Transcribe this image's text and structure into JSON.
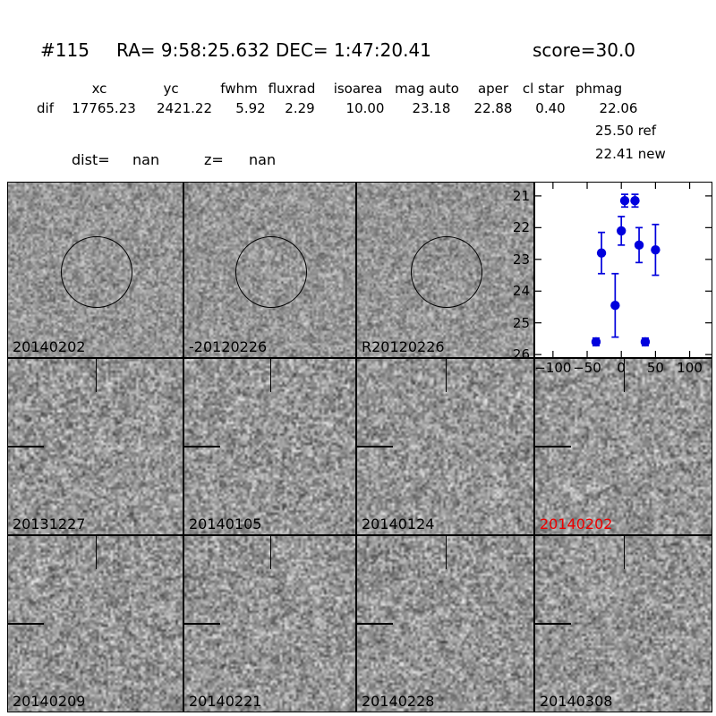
{
  "header": {
    "candidate_id": "#115",
    "coords": "RA= 9:58:25.632 DEC= 1:47:20.41",
    "score": "score=30.0"
  },
  "params": {
    "columns": [
      "xc",
      "yc",
      "fwhm",
      "fluxrad",
      "isoarea",
      "mag auto",
      "aper",
      "cl star",
      "phmag"
    ],
    "row_label": "dif",
    "values": [
      "17765.23",
      "2421.22",
      "5.92",
      "2.29",
      "10.00",
      "23.18",
      "22.88",
      "0.40",
      "22.06"
    ],
    "phmag_ref": "25.50 ref",
    "phmag_new": "22.41 new"
  },
  "dist_line": {
    "dist_label": "dist=",
    "dist_value": "nan",
    "z_label": "z=",
    "z_value": "nan"
  },
  "panels": [
    {
      "label": "20140202",
      "marker": "circle",
      "red": false
    },
    {
      "label": "-20120226",
      "marker": "circle",
      "red": false
    },
    {
      "label": "R20120226",
      "marker": "circle",
      "red": false
    },
    {
      "label": "20131227",
      "marker": "cross",
      "red": false
    },
    {
      "label": "20140105",
      "marker": "cross",
      "red": false
    },
    {
      "label": "20140124",
      "marker": "cross",
      "red": false
    },
    {
      "label": "20140202",
      "marker": "cross",
      "red": true
    },
    {
      "label": "20140209",
      "marker": "cross",
      "red": false
    },
    {
      "label": "20140221",
      "marker": "cross",
      "red": false
    },
    {
      "label": "20140228",
      "marker": "cross",
      "red": false
    },
    {
      "label": "20140308",
      "marker": "cross",
      "red": false
    }
  ],
  "chart_data": {
    "type": "scatter",
    "title": "",
    "xlabel": "",
    "ylabel": "",
    "y_inverted": true,
    "x": [
      -37,
      -29,
      -9,
      0,
      5,
      20,
      26,
      35,
      50
    ],
    "y": [
      25.6,
      22.8,
      24.45,
      22.1,
      21.15,
      21.15,
      22.55,
      25.6,
      22.7
    ],
    "yerr": [
      0.12,
      0.65,
      1.0,
      0.45,
      0.2,
      0.2,
      0.55,
      0.12,
      0.8
    ],
    "xlim": [
      -126,
      132
    ],
    "ylim": [
      26.08,
      20.58
    ],
    "xticks": [
      -100,
      -50,
      0,
      50,
      100
    ],
    "xtick_labels": [
      "−100",
      "−50",
      "0",
      "50",
      "100"
    ],
    "yticks": [
      21,
      22,
      23,
      24,
      25,
      26
    ],
    "ytick_labels": [
      "21",
      "22",
      "23",
      "24",
      "25",
      "26"
    ],
    "grid": false,
    "legend": null,
    "marker_color": "#0000dd"
  },
  "colors": {
    "marker_blue": "#0000dd",
    "red_label": "#ee0000",
    "text": "#000000"
  }
}
